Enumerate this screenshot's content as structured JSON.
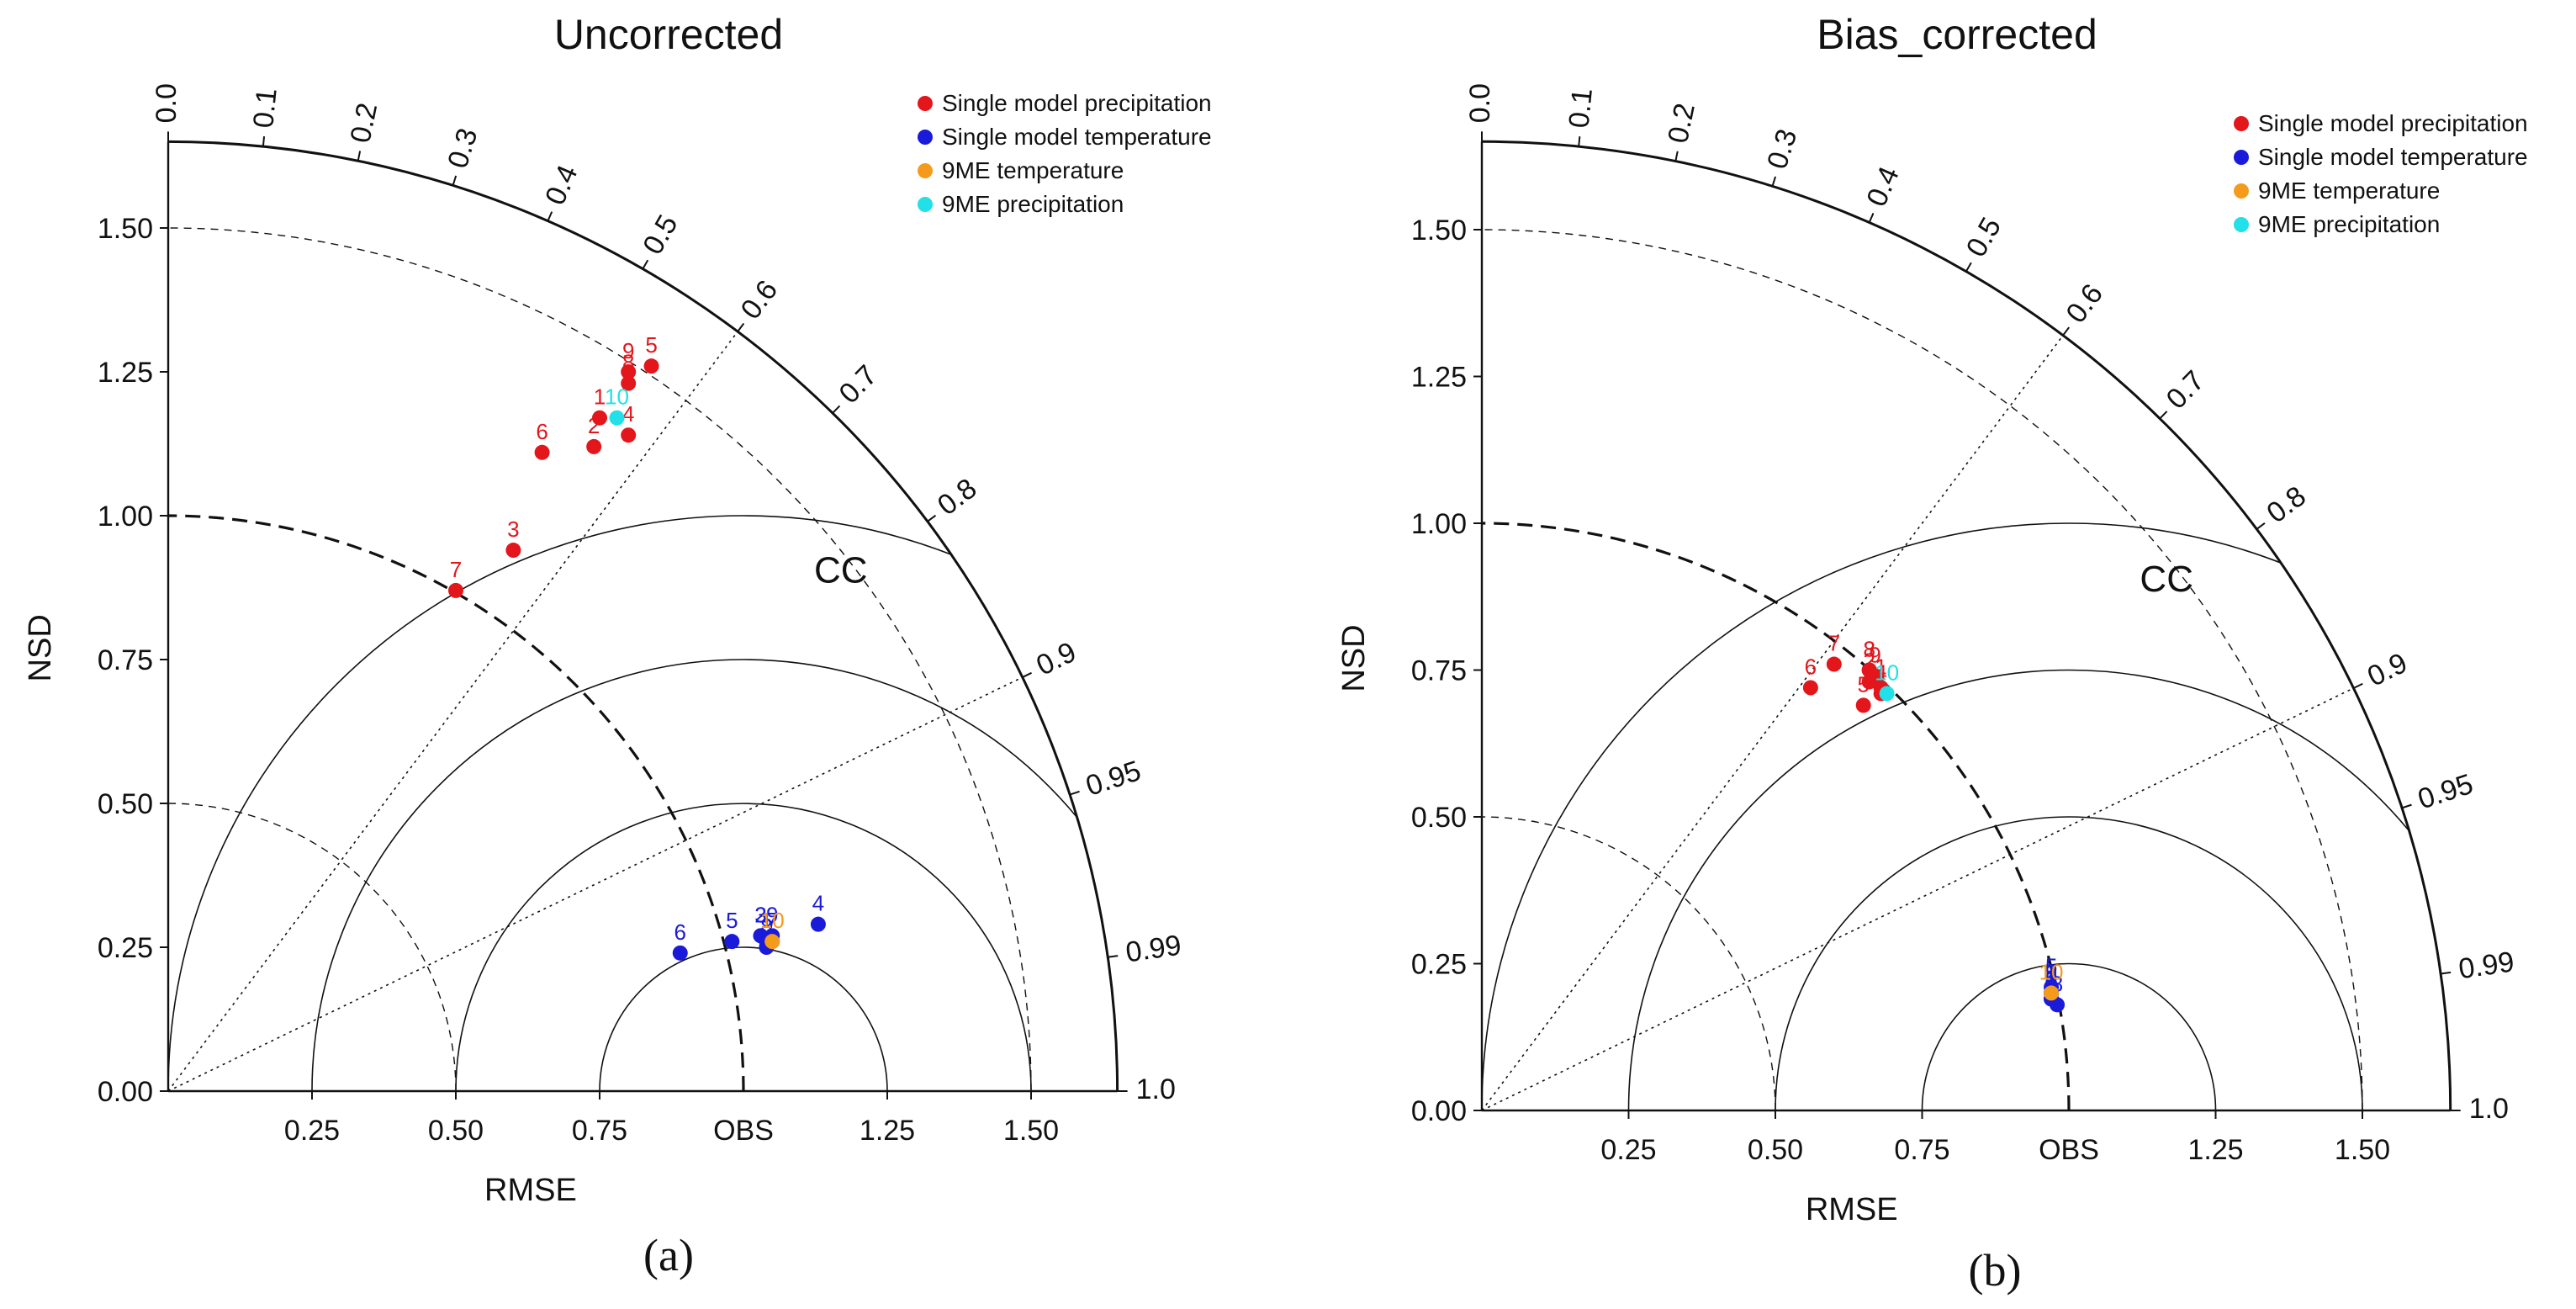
{
  "chart_data": [
    {
      "type": "scatter",
      "subtype": "taylor-diagram",
      "title": "Uncorrected",
      "ylabel": "NSD",
      "xlabel": "RMSE",
      "obs_label": "OBS",
      "corr_label": "CC",
      "panel_label": "(a)",
      "sd_max": 1.65,
      "sd_ticks": [
        "0.00",
        "0.25",
        "0.50",
        "0.75",
        "1.00",
        "1.25",
        "1.50"
      ],
      "rmse_ticks": [
        "0.25",
        "0.50",
        "0.75",
        "1.25",
        "1.50"
      ],
      "corr_ticks": [
        "0.0",
        "0.1",
        "0.2",
        "0.3",
        "0.4",
        "0.5",
        "0.6",
        "0.7",
        "0.8",
        "0.9",
        "0.95",
        "0.99",
        "1.0"
      ],
      "legend": [
        "Single model precipitation",
        "Single model temperature",
        "9ME temperature",
        "9ME precipitation"
      ],
      "series": [
        {
          "name": "Single model precipitation",
          "color": "#e3161c",
          "points": [
            {
              "label": "1",
              "x": 0.75,
              "y": 1.17
            },
            {
              "label": "2",
              "x": 0.74,
              "y": 1.12
            },
            {
              "label": "3",
              "x": 0.6,
              "y": 0.94
            },
            {
              "label": "4",
              "x": 0.8,
              "y": 1.14
            },
            {
              "label": "5",
              "x": 0.84,
              "y": 1.26
            },
            {
              "label": "6",
              "x": 0.65,
              "y": 1.11
            },
            {
              "label": "7",
              "x": 0.5,
              "y": 0.87
            },
            {
              "label": "8",
              "x": 0.8,
              "y": 1.23
            },
            {
              "label": "9",
              "x": 0.8,
              "y": 1.25
            }
          ]
        },
        {
          "name": "Single model temperature",
          "color": "#1a1adb",
          "points": [
            {
              "label": "1",
              "x": 1.04,
              "y": 0.26
            },
            {
              "label": "2",
              "x": 1.03,
              "y": 0.27
            },
            {
              "label": "3",
              "x": 1.03,
              "y": 0.27
            },
            {
              "label": "4",
              "x": 1.13,
              "y": 0.29
            },
            {
              "label": "5",
              "x": 0.98,
              "y": 0.26
            },
            {
              "label": "6",
              "x": 0.89,
              "y": 0.24
            },
            {
              "label": "7",
              "x": 1.05,
              "y": 0.26
            },
            {
              "label": "8",
              "x": 1.04,
              "y": 0.25
            },
            {
              "label": "9",
              "x": 1.05,
              "y": 0.27
            }
          ]
        },
        {
          "name": "9ME temperature",
          "color": "#f59b1c",
          "points": [
            {
              "label": "10",
              "x": 1.05,
              "y": 0.26
            }
          ]
        },
        {
          "name": "9ME precipitation",
          "color": "#22e0e8",
          "points": [
            {
              "label": "10",
              "x": 0.78,
              "y": 1.17
            }
          ]
        }
      ]
    },
    {
      "type": "scatter",
      "subtype": "taylor-diagram",
      "title": "Bias_corrected",
      "ylabel": "NSD",
      "xlabel": "RMSE",
      "obs_label": "OBS",
      "corr_label": "CC",
      "panel_label": "(b)",
      "sd_max": 1.65,
      "sd_ticks": [
        "0.00",
        "0.25",
        "0.50",
        "0.75",
        "1.00",
        "1.25",
        "1.50"
      ],
      "rmse_ticks": [
        "0.25",
        "0.50",
        "0.75",
        "1.25",
        "1.50"
      ],
      "corr_ticks": [
        "0.0",
        "0.1",
        "0.2",
        "0.3",
        "0.4",
        "0.5",
        "0.6",
        "0.7",
        "0.8",
        "0.9",
        "0.95",
        "0.99",
        "1.0"
      ],
      "legend": [
        "Single model precipitation",
        "Single model temperature",
        "9ME temperature",
        "9ME precipitation"
      ],
      "series": [
        {
          "name": "Single model precipitation",
          "color": "#e3161c",
          "points": [
            {
              "label": "1",
              "x": 0.68,
              "y": 0.72
            },
            {
              "label": "2",
              "x": 0.66,
              "y": 0.73
            },
            {
              "label": "3",
              "x": 0.66,
              "y": 0.75
            },
            {
              "label": "4",
              "x": 0.68,
              "y": 0.71
            },
            {
              "label": "5",
              "x": 0.65,
              "y": 0.69
            },
            {
              "label": "6",
              "x": 0.56,
              "y": 0.72
            },
            {
              "label": "7",
              "x": 0.6,
              "y": 0.76
            },
            {
              "label": "8",
              "x": 0.66,
              "y": 0.75
            },
            {
              "label": "9",
              "x": 0.67,
              "y": 0.74
            }
          ]
        },
        {
          "name": "Single model temperature",
          "color": "#1a1adb",
          "points": [
            {
              "label": "1",
              "x": 0.97,
              "y": 0.2
            },
            {
              "label": "2",
              "x": 0.97,
              "y": 0.19
            },
            {
              "label": "3",
              "x": 0.97,
              "y": 0.2
            },
            {
              "label": "4",
              "x": 0.97,
              "y": 0.19
            },
            {
              "label": "5",
              "x": 0.97,
              "y": 0.21
            },
            {
              "label": "6",
              "x": 0.97,
              "y": 0.19
            },
            {
              "label": "7",
              "x": 0.97,
              "y": 0.2
            },
            {
              "label": "8",
              "x": 0.98,
              "y": 0.18
            },
            {
              "label": "9",
              "x": 0.97,
              "y": 0.2
            }
          ]
        },
        {
          "name": "9ME temperature",
          "color": "#f59b1c",
          "points": [
            {
              "label": "10",
              "x": 0.97,
              "y": 0.2
            }
          ]
        },
        {
          "name": "9ME precipitation",
          "color": "#22e0e8",
          "points": [
            {
              "label": "10",
              "x": 0.69,
              "y": 0.71
            }
          ]
        }
      ]
    }
  ]
}
